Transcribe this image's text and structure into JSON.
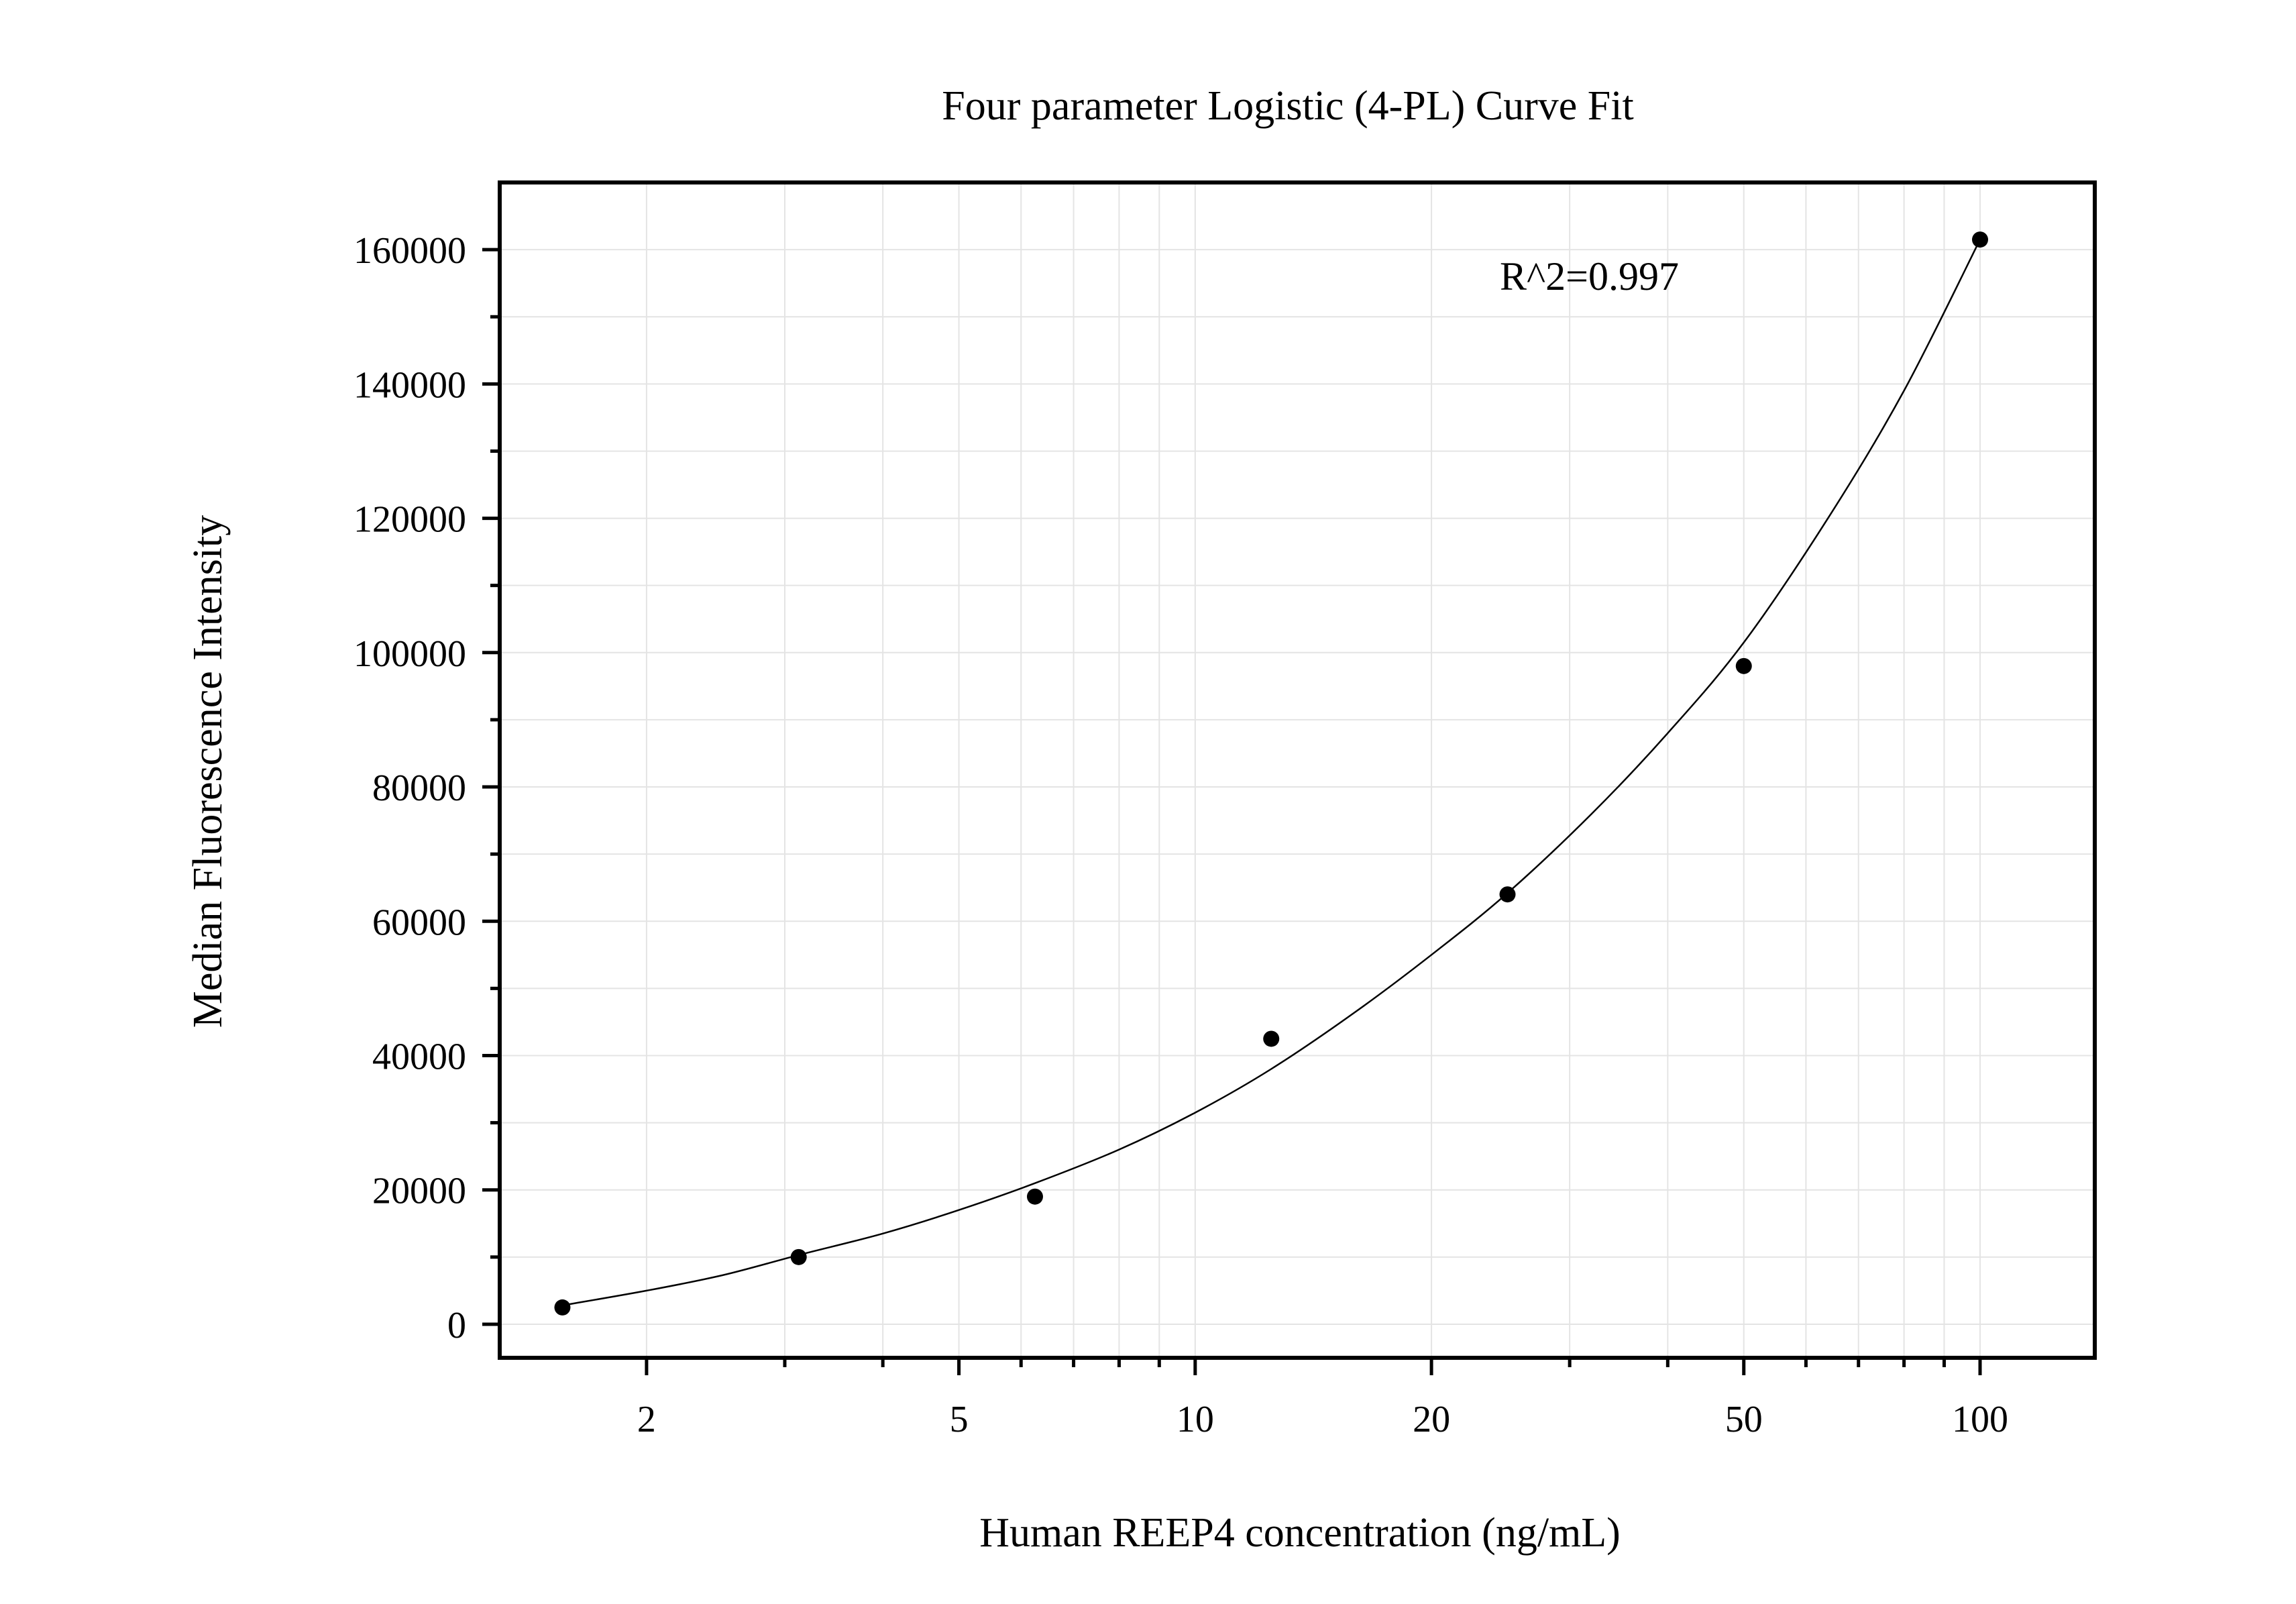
{
  "chart_data": {
    "type": "scatter",
    "title": "Four parameter Logistic (4-PL) Curve Fit",
    "xlabel": "Human REEP4 concentration (ng/mL)",
    "ylabel": "Median Fluorescence Intensity",
    "x_scale": "log",
    "xlim": [
      1.3,
      140
    ],
    "ylim": [
      -5000,
      170000
    ],
    "x_ticks": [
      2,
      5,
      10,
      20,
      50,
      100
    ],
    "x_tick_labels": [
      "2",
      "5",
      "10",
      "20",
      "50",
      "100"
    ],
    "y_ticks": [
      0,
      20000,
      40000,
      60000,
      80000,
      100000,
      120000,
      140000,
      160000
    ],
    "y_tick_labels": [
      "0",
      "20000",
      "40000",
      "60000",
      "80000",
      "100000",
      "120000",
      "140000",
      "160000"
    ],
    "grid": true,
    "annotation": "R^2=0.997",
    "points": [
      {
        "x": 1.5625,
        "y": 2500
      },
      {
        "x": 3.125,
        "y": 10000
      },
      {
        "x": 6.25,
        "y": 19000
      },
      {
        "x": 12.5,
        "y": 42500
      },
      {
        "x": 25,
        "y": 64000
      },
      {
        "x": 50,
        "y": 98000
      },
      {
        "x": 100,
        "y": 161500
      }
    ],
    "fit_curve": {
      "x": [
        1.5625,
        2,
        2.5,
        3.125,
        4,
        5,
        6.25,
        8,
        10,
        12.5,
        16,
        20,
        25,
        32,
        40,
        50,
        64,
        80,
        100
      ],
      "y": [
        2800,
        5000,
        7300,
        10300,
        13500,
        17000,
        21000,
        26000,
        31500,
        38000,
        46500,
        55000,
        64200,
        76000,
        88000,
        101500,
        120000,
        139000,
        161500
      ]
    }
  }
}
